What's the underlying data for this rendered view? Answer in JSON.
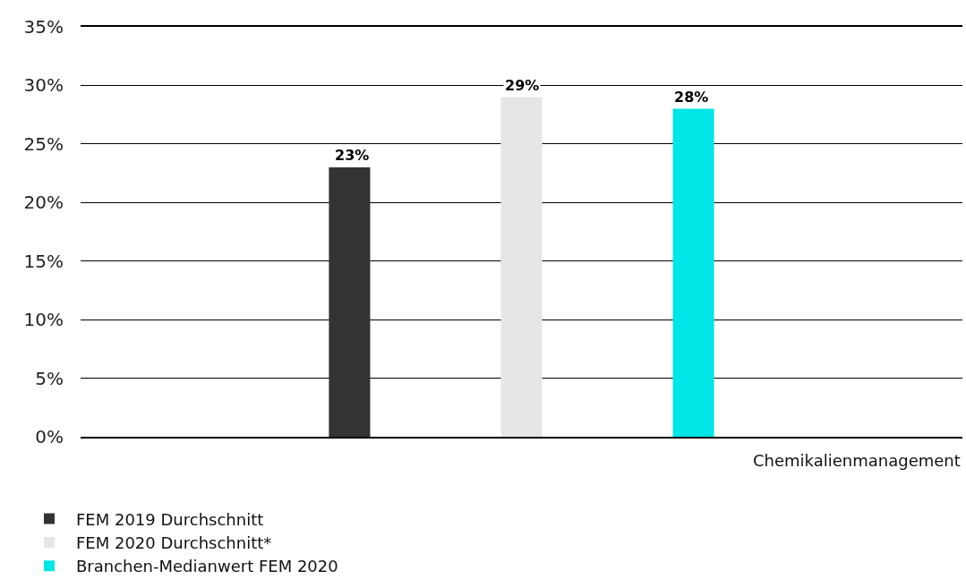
{
  "chart_data": {
    "type": "bar",
    "xlabel": "Chemikalienmanagement",
    "categories": [
      null
    ],
    "series": [
      {
        "name": "FEM 2019 Durchschnitt",
        "color": "#333333",
        "values": [
          23
        ],
        "value_labels": [
          "23%"
        ]
      },
      {
        "name": "FEM 2020 Durchschnitt*",
        "color": "#e6e6e6",
        "values": [
          29
        ],
        "value_labels": [
          "29%"
        ]
      },
      {
        "name": "Branchen-Medianwert FEM 2020",
        "color": "#00e5e5",
        "values": [
          28
        ],
        "value_labels": [
          "28%"
        ]
      }
    ],
    "ylim": [
      0,
      35
    ],
    "yticks": [
      {
        "value": 0,
        "label": "0%"
      },
      {
        "value": 5,
        "label": "5%"
      },
      {
        "value": 10,
        "label": "10%"
      },
      {
        "value": 15,
        "label": "15%"
      },
      {
        "value": 20,
        "label": "20%"
      },
      {
        "value": 25,
        "label": "25%"
      },
      {
        "value": 30,
        "label": "30%"
      },
      {
        "value": 35,
        "label": "35%"
      }
    ],
    "grid": "y",
    "legend": "bottom left"
  }
}
